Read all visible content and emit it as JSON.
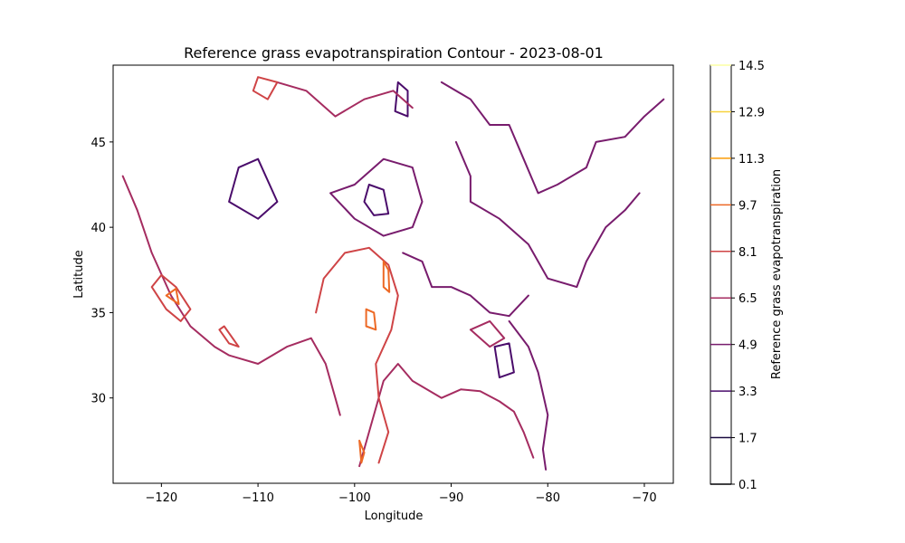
{
  "chart_data": {
    "type": "contour",
    "title": "Reference grass evapotranspiration Contour - 2023-08-01",
    "xlabel": "Longitude",
    "ylabel": "Latitude",
    "xlim": [
      -125,
      -67
    ],
    "ylim": [
      25,
      49.5
    ],
    "x_ticks": [
      -120,
      -110,
      -100,
      -90,
      -80,
      -70
    ],
    "y_ticks": [
      30,
      35,
      40,
      45
    ],
    "x_tick_labels": [
      "−120",
      "−110",
      "−100",
      "−90",
      "−80",
      "−70"
    ],
    "y_tick_labels": [
      "30",
      "35",
      "40",
      "45"
    ],
    "colorbar": {
      "label": "Reference grass evapotranspiration",
      "levels": [
        0.1,
        1.7,
        3.3,
        4.9,
        6.5,
        8.1,
        9.7,
        11.3,
        12.9,
        14.5
      ],
      "level_labels": [
        "0.1",
        "1.7",
        "3.3",
        "4.9",
        "6.5",
        "8.1",
        "9.7",
        "11.3",
        "12.9",
        "14.5"
      ],
      "colors": [
        "#000004",
        "#1b0c41",
        "#4a0c6b",
        "#781c6d",
        "#a52c60",
        "#cf4446",
        "#ed6925",
        "#fb9b06",
        "#f7d13d",
        "#fcffa4"
      ]
    },
    "contour_lines": [
      {
        "level": 3.3,
        "points": [
          [
            -112,
            43.5
          ],
          [
            -110,
            44
          ],
          [
            -108,
            41.5
          ],
          [
            -110,
            40.5
          ],
          [
            -113,
            41.5
          ],
          [
            -112,
            43.5
          ]
        ]
      },
      {
        "level": 3.3,
        "points": [
          [
            -95.5,
            48.5
          ],
          [
            -94.5,
            48
          ],
          [
            -94.5,
            46.5
          ],
          [
            -95.8,
            46.8
          ],
          [
            -95.5,
            48.5
          ]
        ]
      },
      {
        "level": 3.3,
        "points": [
          [
            -98.5,
            42.5
          ],
          [
            -97,
            42.2
          ],
          [
            -96.5,
            40.8
          ],
          [
            -98,
            40.7
          ],
          [
            -99,
            41.5
          ],
          [
            -98.5,
            42.5
          ]
        ]
      },
      {
        "level": 3.3,
        "points": [
          [
            -85.5,
            33
          ],
          [
            -84,
            33.2
          ],
          [
            -83.5,
            31.5
          ],
          [
            -85,
            31.2
          ],
          [
            -85.5,
            33
          ]
        ]
      },
      {
        "level": 4.9,
        "points": [
          [
            -102.5,
            42
          ],
          [
            -100,
            42.5
          ],
          [
            -97,
            44
          ],
          [
            -94,
            43.5
          ],
          [
            -93,
            41.5
          ],
          [
            -94,
            40
          ],
          [
            -97,
            39.5
          ],
          [
            -100,
            40.5
          ],
          [
            -102.5,
            42
          ]
        ]
      },
      {
        "level": 4.9,
        "points": [
          [
            -91,
            48.5
          ],
          [
            -88,
            47.5
          ],
          [
            -86,
            46
          ],
          [
            -84,
            46
          ],
          [
            -82.5,
            44
          ],
          [
            -81,
            42
          ],
          [
            -79,
            42.5
          ],
          [
            -76,
            43.5
          ],
          [
            -75,
            45
          ],
          [
            -72,
            45.3
          ],
          [
            -70,
            46.5
          ],
          [
            -68,
            47.5
          ]
        ]
      },
      {
        "level": 4.9,
        "points": [
          [
            -89.5,
            45
          ],
          [
            -88,
            43
          ],
          [
            -88,
            41.5
          ],
          [
            -85,
            40.5
          ],
          [
            -82,
            39
          ],
          [
            -80,
            37
          ],
          [
            -77,
            36.5
          ],
          [
            -76,
            38
          ],
          [
            -74,
            40
          ],
          [
            -72,
            41
          ],
          [
            -70.5,
            42
          ]
        ]
      },
      {
        "level": 4.9,
        "points": [
          [
            -95,
            38.5
          ],
          [
            -93,
            38
          ],
          [
            -92,
            36.5
          ],
          [
            -90,
            36.5
          ],
          [
            -88,
            36
          ],
          [
            -86,
            35
          ],
          [
            -84,
            34.8
          ],
          [
            -82,
            36
          ]
        ]
      },
      {
        "level": 4.9,
        "points": [
          [
            -84,
            34.5
          ],
          [
            -82,
            33
          ],
          [
            -81,
            31.5
          ],
          [
            -80,
            29
          ],
          [
            -80.5,
            27
          ],
          [
            -80.2,
            25.8
          ]
        ]
      },
      {
        "level": 6.5,
        "points": [
          [
            -108,
            48.5
          ],
          [
            -105,
            48
          ],
          [
            -102,
            46.5
          ],
          [
            -99,
            47.5
          ],
          [
            -96,
            48
          ],
          [
            -94,
            47
          ]
        ]
      },
      {
        "level": 6.5,
        "points": [
          [
            -124,
            43
          ],
          [
            -122.5,
            41
          ],
          [
            -121,
            38.5
          ],
          [
            -119,
            36
          ],
          [
            -117,
            34.2
          ],
          [
            -114.5,
            33
          ],
          [
            -113,
            32.5
          ],
          [
            -110,
            32
          ],
          [
            -107,
            33
          ],
          [
            -104.5,
            33.5
          ],
          [
            -103,
            32
          ],
          [
            -102,
            30
          ],
          [
            -101.5,
            29
          ]
        ]
      },
      {
        "level": 6.5,
        "points": [
          [
            -99.5,
            26
          ],
          [
            -98.5,
            28
          ],
          [
            -97,
            31
          ],
          [
            -95.5,
            32
          ],
          [
            -94,
            31
          ],
          [
            -91,
            30
          ],
          [
            -89,
            30.5
          ],
          [
            -87,
            30.4
          ],
          [
            -85,
            29.8
          ],
          [
            -83.5,
            29.2
          ],
          [
            -82.5,
            28
          ],
          [
            -81.5,
            26.5
          ]
        ]
      },
      {
        "level": 6.5,
        "points": [
          [
            -88,
            34
          ],
          [
            -86,
            33
          ],
          [
            -84.5,
            33.5
          ],
          [
            -86,
            34.5
          ],
          [
            -88,
            34
          ]
        ]
      },
      {
        "level": 8.1,
        "points": [
          [
            -104,
            35
          ],
          [
            -103.2,
            37
          ],
          [
            -101,
            38.5
          ],
          [
            -98.5,
            38.8
          ],
          [
            -96.5,
            37.8
          ],
          [
            -95.5,
            36
          ],
          [
            -96.2,
            34
          ],
          [
            -97.8,
            32
          ],
          [
            -97.5,
            30
          ],
          [
            -96.5,
            28
          ],
          [
            -97.5,
            26.2
          ]
        ]
      },
      {
        "level": 8.1,
        "points": [
          [
            -121,
            36.5
          ],
          [
            -119.5,
            35.2
          ],
          [
            -118,
            34.5
          ],
          [
            -117,
            35.2
          ],
          [
            -118.5,
            36.5
          ],
          [
            -120,
            37.2
          ],
          [
            -121,
            36.5
          ]
        ]
      },
      {
        "level": 8.1,
        "points": [
          [
            -114,
            34
          ],
          [
            -113,
            33.2
          ],
          [
            -112,
            33
          ],
          [
            -113.5,
            34.2
          ],
          [
            -114,
            34
          ]
        ]
      },
      {
        "level": 8.1,
        "points": [
          [
            -110.5,
            48
          ],
          [
            -109,
            47.5
          ],
          [
            -108,
            48.5
          ],
          [
            -110,
            48.8
          ],
          [
            -110.5,
            48
          ]
        ]
      },
      {
        "level": 9.7,
        "points": [
          [
            -98.8,
            35.2
          ],
          [
            -98,
            35
          ],
          [
            -97.8,
            34
          ],
          [
            -98.8,
            34.2
          ],
          [
            -98.8,
            35.2
          ]
        ]
      },
      {
        "level": 9.7,
        "points": [
          [
            -97,
            38
          ],
          [
            -96.5,
            37.5
          ],
          [
            -96.4,
            36.2
          ],
          [
            -97,
            36.5
          ],
          [
            -97,
            38
          ]
        ]
      },
      {
        "level": 9.7,
        "points": [
          [
            -119.5,
            36
          ],
          [
            -118.2,
            35.5
          ],
          [
            -118.5,
            36.4
          ],
          [
            -119.5,
            36
          ]
        ]
      },
      {
        "level": 9.7,
        "points": [
          [
            -99.5,
            27.5
          ],
          [
            -99,
            26.8
          ],
          [
            -99.3,
            26.2
          ],
          [
            -99.5,
            27.5
          ]
        ]
      }
    ]
  }
}
